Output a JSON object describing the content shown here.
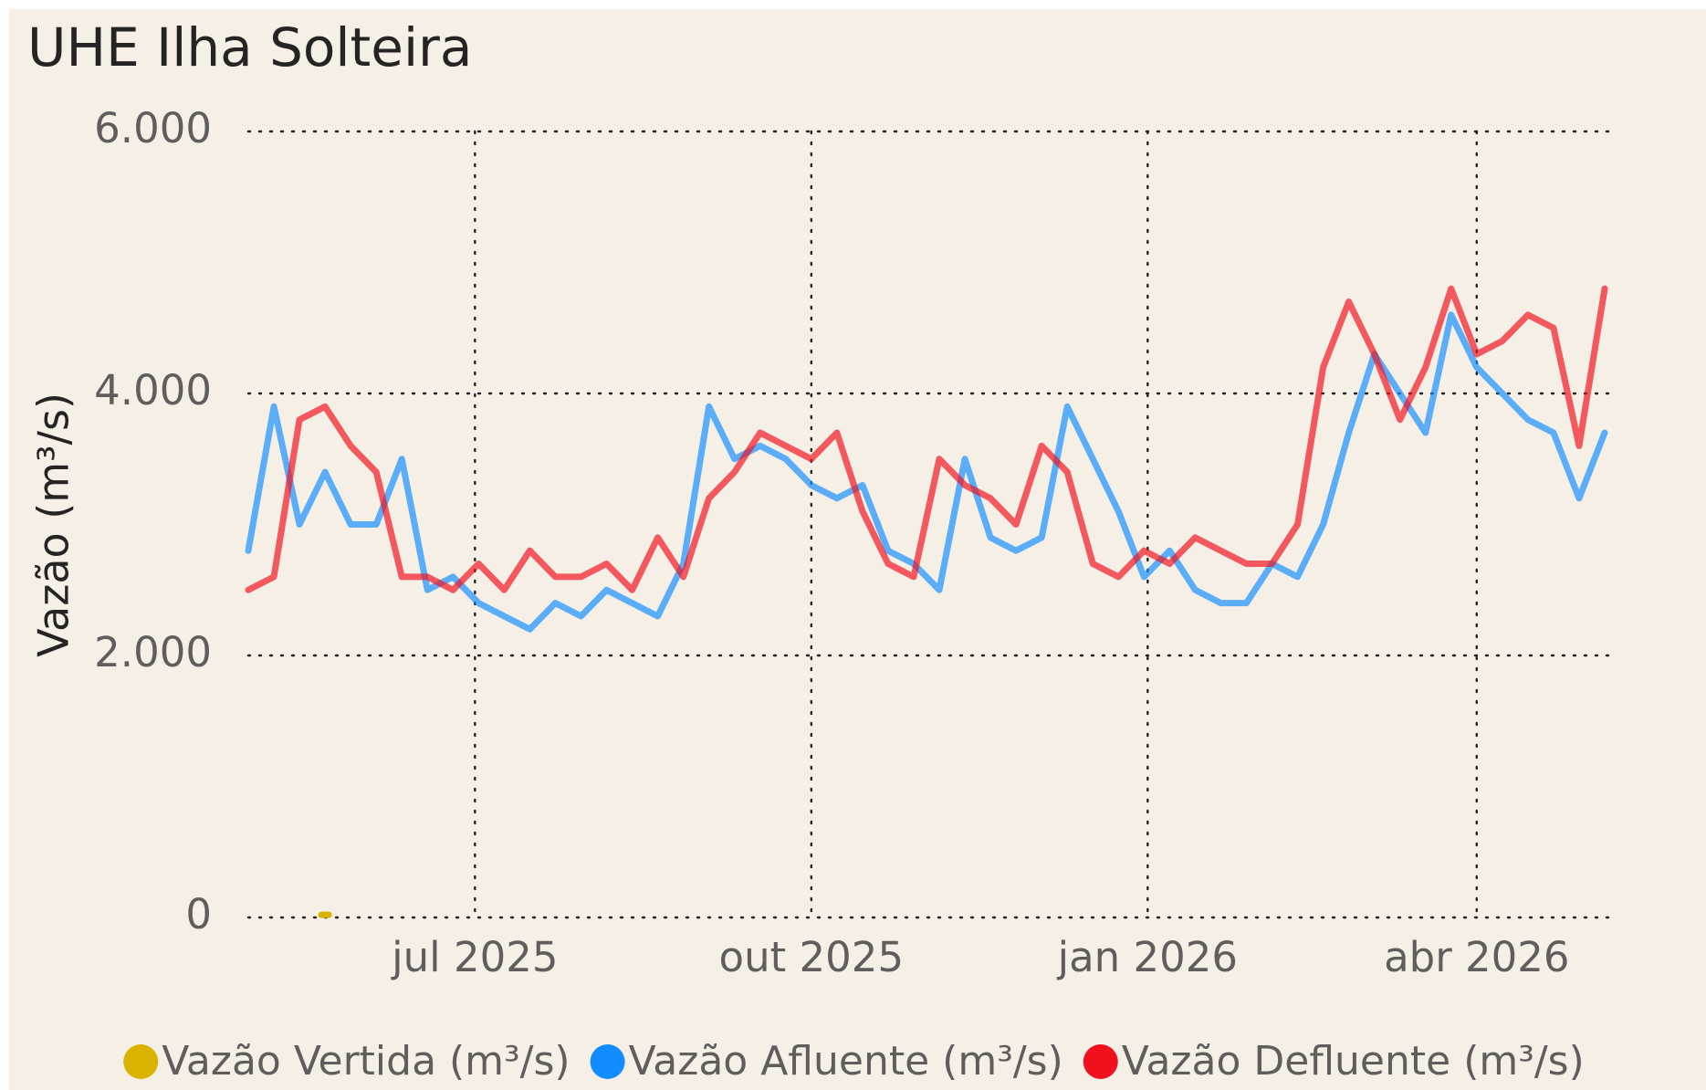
{
  "chart_data": {
    "type": "line",
    "title": "UHE Ilha Solteira",
    "y_label": "Vazão (m³/s)",
    "x": [
      "2025-04-30",
      "2025-05-07",
      "2025-05-14",
      "2025-05-21",
      "2025-05-28",
      "2025-06-04",
      "2025-06-11",
      "2025-06-18",
      "2025-06-25",
      "2025-07-02",
      "2025-07-09",
      "2025-07-16",
      "2025-07-23",
      "2025-07-30",
      "2025-08-06",
      "2025-08-13",
      "2025-08-20",
      "2025-08-27",
      "2025-09-03",
      "2025-09-10",
      "2025-09-17",
      "2025-09-24",
      "2025-10-01",
      "2025-10-08",
      "2025-10-15",
      "2025-10-22",
      "2025-10-29",
      "2025-11-05",
      "2025-11-12",
      "2025-11-19",
      "2025-11-26",
      "2025-12-03",
      "2025-12-10",
      "2025-12-17",
      "2025-12-24",
      "2025-12-31",
      "2026-01-07",
      "2026-01-14",
      "2026-01-21",
      "2026-01-28",
      "2026-02-04",
      "2026-02-11",
      "2026-02-18",
      "2026-02-25",
      "2026-03-04",
      "2026-03-11",
      "2026-03-18",
      "2026-03-25",
      "2026-04-01",
      "2026-04-08",
      "2026-04-15",
      "2026-04-22",
      "2026-04-29",
      "2026-05-06"
    ],
    "series": [
      {
        "name": "Vazão Vertida (m³/s)",
        "color": "#D9B300",
        "values": [
          null,
          null,
          null,
          20,
          null,
          null,
          null,
          null,
          null,
          null,
          null,
          null,
          null,
          null,
          null,
          null,
          null,
          null,
          null,
          null,
          null,
          null,
          null,
          null,
          null,
          null,
          null,
          null,
          null,
          null,
          null,
          null,
          null,
          null,
          null,
          null,
          null,
          null,
          null,
          null,
          null,
          null,
          null,
          null,
          null,
          null,
          null,
          null,
          null,
          null,
          null,
          null,
          null,
          null
        ]
      },
      {
        "name": "Vazão Afluente (m³/s)",
        "color": "#118DFF",
        "values": [
          2800,
          3900,
          3000,
          3400,
          3000,
          3000,
          3500,
          2500,
          2600,
          2400,
          2300,
          2200,
          2400,
          2300,
          2500,
          2400,
          2300,
          2700,
          3900,
          3500,
          3600,
          3500,
          3300,
          3200,
          3300,
          2800,
          2700,
          2500,
          3500,
          2900,
          2800,
          2900,
          3900,
          3500,
          3100,
          2600,
          2800,
          2500,
          2400,
          2400,
          2700,
          2600,
          3000,
          3700,
          4300,
          4000,
          3700,
          4600,
          4200,
          4000,
          3800,
          3700,
          3200,
          3700
        ]
      },
      {
        "name": "Vazão Defluente (m³/s)",
        "color": "#F0101E",
        "values": [
          2500,
          2600,
          3800,
          3900,
          3600,
          3400,
          2600,
          2600,
          2500,
          2700,
          2500,
          2800,
          2600,
          2600,
          2700,
          2500,
          2900,
          2600,
          3200,
          3400,
          3700,
          3600,
          3500,
          3700,
          3100,
          2700,
          2600,
          3500,
          3300,
          3200,
          3000,
          3600,
          3400,
          2700,
          2600,
          2800,
          2700,
          2900,
          2800,
          2700,
          2700,
          3000,
          4200,
          4700,
          4300,
          3800,
          4200,
          4800,
          4300,
          4400,
          4600,
          4500,
          3600,
          4800
        ]
      }
    ],
    "xlim": [
      "2025-04-30",
      "2026-05-07"
    ],
    "xticks": [
      {
        "value": "2025-07-01",
        "label": "jul 2025"
      },
      {
        "value": "2025-10-01",
        "label": "out 2025"
      },
      {
        "value": "2026-01-01",
        "label": "jan 2026"
      },
      {
        "value": "2026-04-01",
        "label": "abr 2026"
      }
    ],
    "ylim": [
      0,
      6000
    ],
    "yticks": [
      {
        "value": 0,
        "label": "0"
      },
      {
        "value": 2000,
        "label": "2.000"
      },
      {
        "value": 4000,
        "label": "4.000"
      },
      {
        "value": 6000,
        "label": "6.000"
      }
    ],
    "grid": true,
    "legend": "bottom"
  }
}
